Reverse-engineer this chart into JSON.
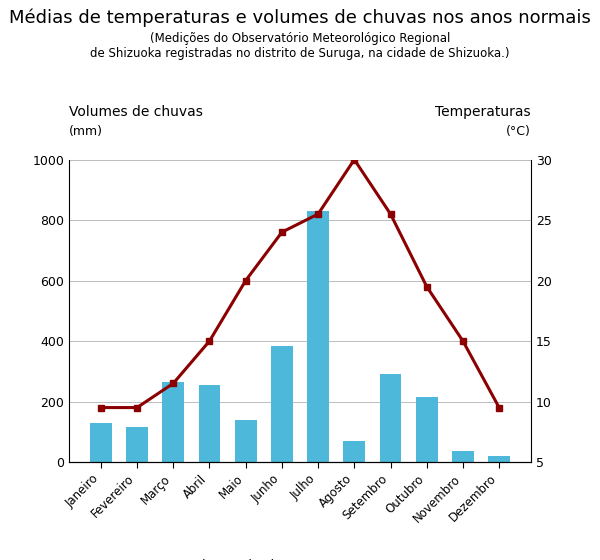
{
  "title": "Médias de temperaturas e volumes de chuvas nos anos normais",
  "subtitle": "(Medições do Observatório Meteorológico Regional\nde Shizuoka registradas no distrito de Suruga, na cidade de Shizuoka.)",
  "months": [
    "Janeiro",
    "Fevereiro",
    "Março",
    "Abril",
    "Maio",
    "Junho",
    "Julho",
    "Agosto",
    "Setembro",
    "Outubro",
    "Novembro",
    "Dezembro"
  ],
  "rainfall": [
    130,
    115,
    265,
    255,
    140,
    385,
    830,
    70,
    290,
    215,
    38,
    20
  ],
  "temperature": [
    9.5,
    9.5,
    11.5,
    15,
    20,
    24,
    25.5,
    30,
    25.5,
    19.5,
    15,
    9.5
  ],
  "bar_color": "#4db8d9",
  "line_color": "#8b0000",
  "ylabel_left": "Volumes de chuvas",
  "ylabel_left_unit": "(mm)",
  "ylabel_right": "Temperaturas",
  "ylabel_right_unit": "(°C)",
  "ylim_left": [
    0,
    1000
  ],
  "ylim_right": [
    5,
    30
  ],
  "yticks_left": [
    0,
    200,
    400,
    600,
    800,
    1000
  ],
  "yticks_right": [
    5,
    10,
    15,
    20,
    25,
    30
  ],
  "legend_bar": "Volumes de chuvas",
  "legend_line": "Temperaturas",
  "background_color": "#ffffff",
  "grid_color": "#bbbbbb",
  "title_fontsize": 13,
  "subtitle_fontsize": 8.5,
  "tick_fontsize": 9,
  "axis_label_fontsize": 10,
  "axis_unit_fontsize": 9
}
